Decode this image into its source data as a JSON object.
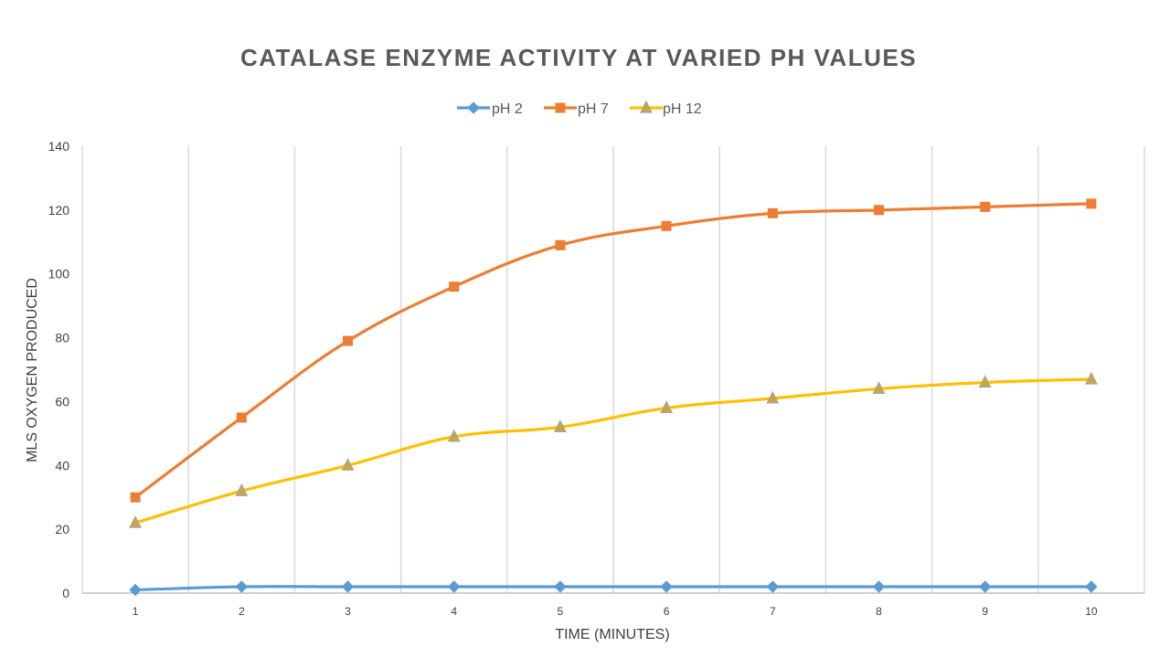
{
  "chart_data": {
    "type": "line",
    "title": "CATALASE ENZYME ACTIVITY AT VARIED PH VALUES",
    "xlabel": "TIME (MINUTES)",
    "ylabel": "MLS OXYGEN PRODUCED",
    "categories": [
      "1",
      "2",
      "3",
      "4",
      "5",
      "6",
      "7",
      "8",
      "9",
      "10"
    ],
    "ylim": [
      0,
      140
    ],
    "yticks": [
      "0",
      "20",
      "40",
      "60",
      "80",
      "100",
      "120",
      "140"
    ],
    "grid": "vertical",
    "legend": "top-center",
    "series": [
      {
        "name": "pH 2",
        "color": "#5B9BD5",
        "marker": "diamond",
        "values": [
          1,
          2,
          2,
          2,
          2,
          2,
          2,
          2,
          2,
          2
        ]
      },
      {
        "name": "pH 7",
        "color": "#ED7D31",
        "marker": "square",
        "values": [
          30,
          55,
          79,
          96,
          109,
          115,
          119,
          120,
          121,
          122
        ]
      },
      {
        "name": "pH 12",
        "color": "#FFC000",
        "marker": "triangle",
        "values": [
          22,
          32,
          40,
          49,
          52,
          58,
          61,
          64,
          66,
          67
        ]
      }
    ]
  }
}
